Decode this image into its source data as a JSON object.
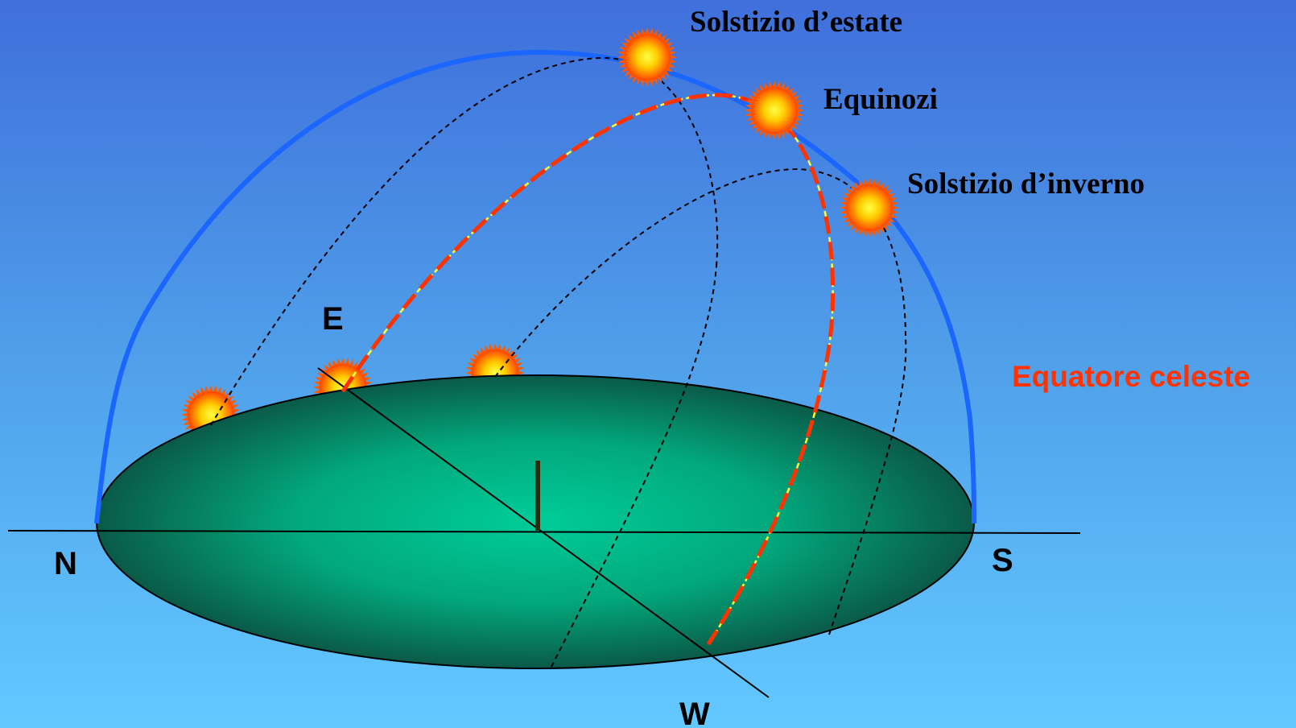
{
  "labels": {
    "summer_solstice": "Solstizio d’estate",
    "equinoxes": "Equinozi",
    "winter_solstice": "Solstizio d’inverno",
    "celestial_equator": "Equatore celeste"
  },
  "directions": {
    "north": "N",
    "south": "S",
    "east": "E",
    "west": "W"
  },
  "colors": {
    "sky_top": "#3f6fdb",
    "sky_bottom": "#62c9ff",
    "dome": "#1a66ff",
    "ground_center": "#00cc99",
    "ground_edge": "#0a5a48",
    "equator": "#ff3300",
    "equator_highlight": "#ffff33",
    "sun_outer": "#ff5a00",
    "sun_inner": "#ffff33"
  }
}
